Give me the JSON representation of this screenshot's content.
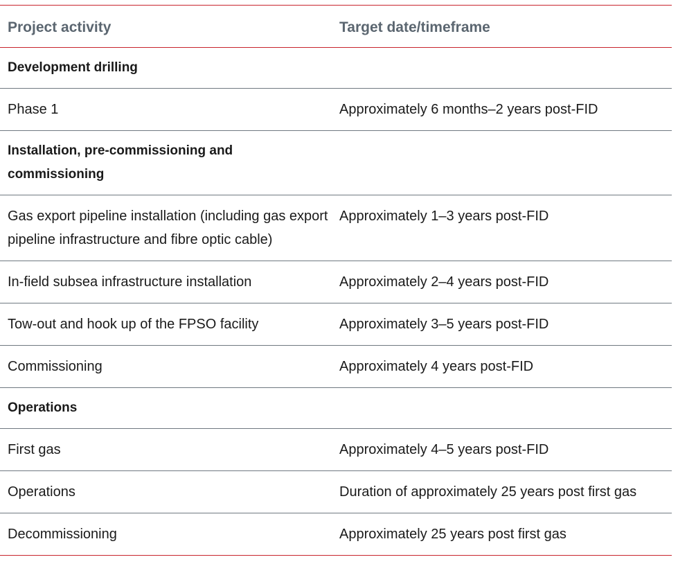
{
  "table": {
    "headers": {
      "activity": "Project activity",
      "target": "Target date/timeframe"
    },
    "rows": [
      {
        "type": "section",
        "activity": "Development drilling",
        "target": ""
      },
      {
        "type": "item",
        "activity": "Phase 1",
        "target": "Approximately 6 months–2 years post-FID"
      },
      {
        "type": "section",
        "activity": "Installation, pre-commissioning and commissioning",
        "target": ""
      },
      {
        "type": "item",
        "activity": "Gas export pipeline installation (including gas export pipeline infrastructure and fibre optic cable)",
        "target": "Approximately 1–3 years post-FID"
      },
      {
        "type": "item",
        "activity": "In-field subsea infrastructure installation",
        "target": "Approximately 2–4 years post-FID"
      },
      {
        "type": "item",
        "activity": "Tow-out and hook up of the FPSO facility",
        "target": "Approximately 3–5 years post-FID"
      },
      {
        "type": "item",
        "activity": "Commissioning",
        "target": "Approximately 4 years post-FID"
      },
      {
        "type": "section",
        "activity": "Operations",
        "target": ""
      },
      {
        "type": "item",
        "activity": "First gas",
        "target": "Approximately 4–5 years post-FID"
      },
      {
        "type": "item",
        "activity": "Operations",
        "target": "Duration of approximately 25 years post first gas"
      },
      {
        "type": "item",
        "activity": "Decommissioning",
        "target": "Approximately 25 years post first gas"
      }
    ]
  }
}
